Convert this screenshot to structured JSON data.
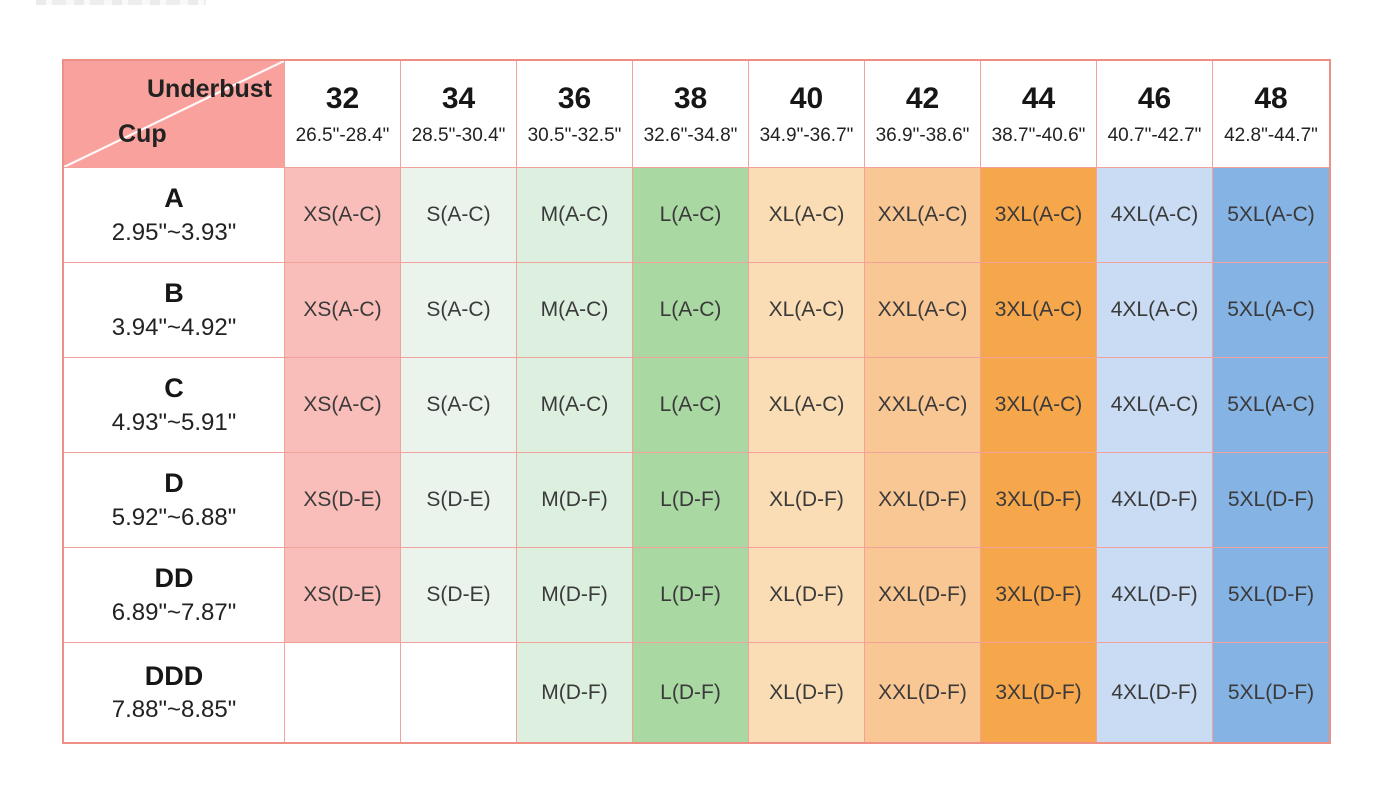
{
  "table": {
    "corner": {
      "top_label": "Underbust",
      "bottom_label": "Cup"
    },
    "columns": [
      {
        "band": "32",
        "range": "26.5\"-28.4\"",
        "color": "#f9beb9"
      },
      {
        "band": "34",
        "range": "28.5\"-30.4\"",
        "color": "#eaf4ec"
      },
      {
        "band": "36",
        "range": "30.5\"-32.5\"",
        "color": "#ddefdf"
      },
      {
        "band": "38",
        "range": "32.6\"-34.8\"",
        "color": "#a9d8a3"
      },
      {
        "band": "40",
        "range": "34.9\"-36.7\"",
        "color": "#fbddb5"
      },
      {
        "band": "42",
        "range": "36.9\"-38.6\"",
        "color": "#f9c794"
      },
      {
        "band": "44",
        "range": "38.7\"-40.6\"",
        "color": "#f6a74c"
      },
      {
        "band": "46",
        "range": "40.7\"-42.7\"",
        "color": "#c9dcf3"
      },
      {
        "band": "48",
        "range": "42.8\"-44.7\"",
        "color": "#85b3e4"
      }
    ],
    "rows": [
      {
        "cup": "A",
        "range": "2.95\"~3.93\"",
        "cells": [
          "XS(A-C)",
          "S(A-C)",
          "M(A-C)",
          "L(A-C)",
          "XL(A-C)",
          "XXL(A-C)",
          "3XL(A-C)",
          "4XL(A-C)",
          "5XL(A-C)"
        ]
      },
      {
        "cup": "B",
        "range": "3.94\"~4.92\"",
        "cells": [
          "XS(A-C)",
          "S(A-C)",
          "M(A-C)",
          "L(A-C)",
          "XL(A-C)",
          "XXL(A-C)",
          "3XL(A-C)",
          "4XL(A-C)",
          "5XL(A-C)"
        ]
      },
      {
        "cup": "C",
        "range": "4.93\"~5.91\"",
        "cells": [
          "XS(A-C)",
          "S(A-C)",
          "M(A-C)",
          "L(A-C)",
          "XL(A-C)",
          "XXL(A-C)",
          "3XL(A-C)",
          "4XL(A-C)",
          "5XL(A-C)"
        ]
      },
      {
        "cup": "D",
        "range": "5.92\"~6.88\"",
        "cells": [
          "XS(D-E)",
          "S(D-E)",
          "M(D-F)",
          "L(D-F)",
          "XL(D-F)",
          "XXL(D-F)",
          "3XL(D-F)",
          "4XL(D-F)",
          "5XL(D-F)"
        ]
      },
      {
        "cup": "DD",
        "range": "6.89\"~7.87\"",
        "cells": [
          "XS(D-E)",
          "S(D-E)",
          "M(D-F)",
          "L(D-F)",
          "XL(D-F)",
          "XXL(D-F)",
          "3XL(D-F)",
          "4XL(D-F)",
          "5XL(D-F)"
        ]
      },
      {
        "cup": "DDD",
        "range": "7.88\"~8.85\"",
        "cells": [
          "",
          "",
          "M(D-F)",
          "L(D-F)",
          "XL(D-F)",
          "XXL(D-F)",
          "3XL(D-F)",
          "4XL(D-F)",
          "5XL(D-F)"
        ]
      }
    ],
    "colors": {
      "corner_bg": "#f9a29d",
      "outer_border": "#ee8f85",
      "grid_line": "#f2a29a"
    }
  }
}
